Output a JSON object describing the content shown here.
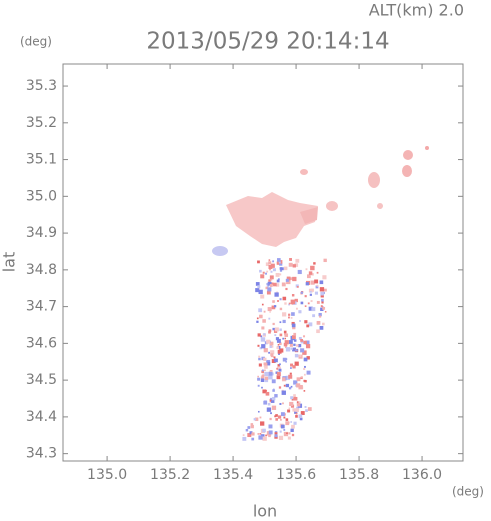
{
  "chart_data": {
    "type": "scatter",
    "annotation": "ALT(km) 2.0",
    "title": "2013/05/29 20:14:14",
    "y_unit": "(deg)",
    "x_unit": "(deg)",
    "xlabel": "lon",
    "ylabel": "lat",
    "xlim": [
      134.86,
      136.13
    ],
    "ylim": [
      34.28,
      35.36
    ],
    "xticks": [
      {
        "value": 135,
        "label": "135.0"
      },
      135.2,
      135.4,
      135.6,
      135.8,
      {
        "value": 136,
        "label": "136.0"
      }
    ],
    "yticks": [
      34.3,
      34.4,
      34.5,
      34.6,
      34.7,
      34.8,
      34.9,
      {
        "value": 35,
        "label": "35.0"
      },
      35.1,
      35.2,
      35.3
    ]
  }
}
